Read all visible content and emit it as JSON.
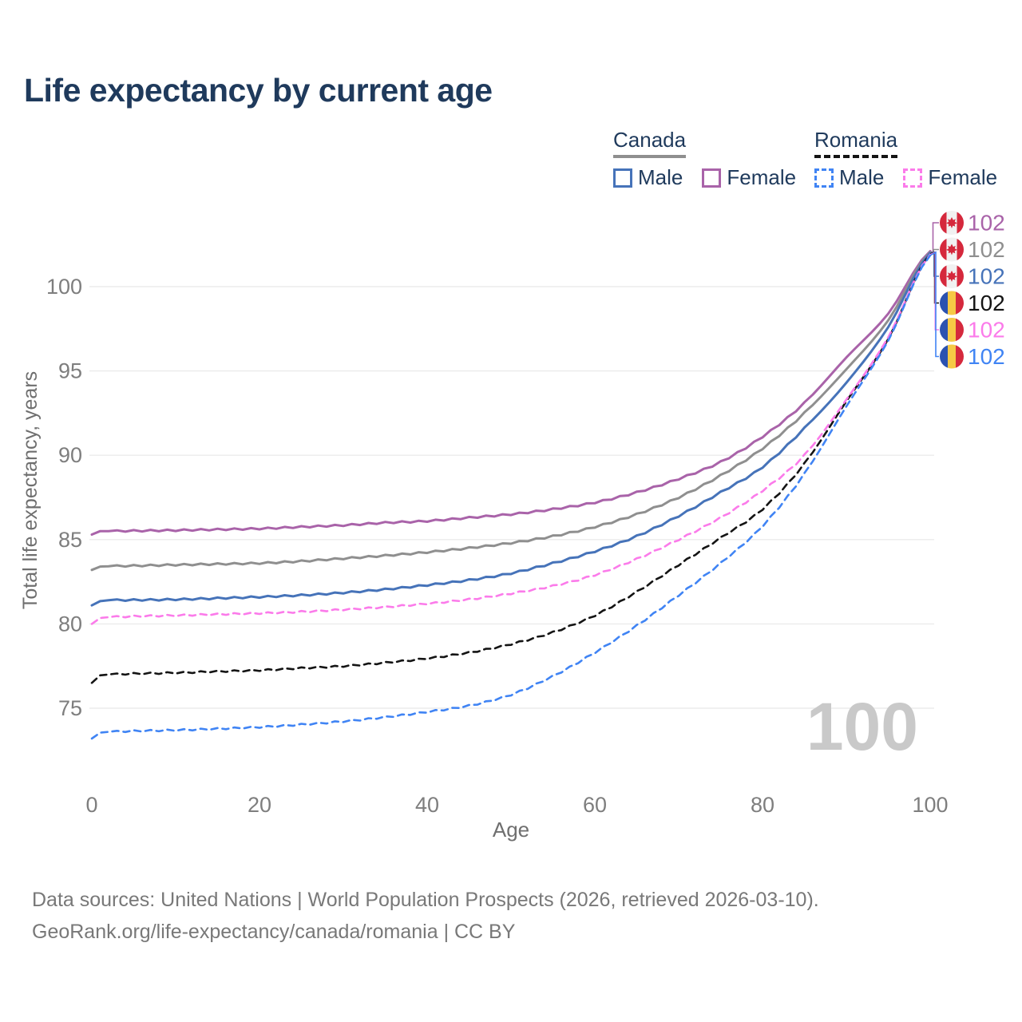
{
  "header": {
    "title": "Life expectancy by current age"
  },
  "legend": {
    "canada": {
      "label": "Canada",
      "male": "Male",
      "female": "Female"
    },
    "romania": {
      "label": "Romania",
      "male": "Male",
      "female": "Female"
    }
  },
  "axes": {
    "x_label": "Age",
    "y_label": "Total life expectancy, years",
    "x_ticks": [
      0,
      20,
      40,
      60,
      80,
      100
    ],
    "y_ticks": [
      75,
      80,
      85,
      90,
      95,
      100
    ]
  },
  "watermark": {
    "text": "100"
  },
  "footer": {
    "line1": "Data sources: United Nations | World Population Prospects (2026, retrieved 2026-03-10).",
    "line2": "GeoRank.org/life-expectancy/canada/romania | CC BY"
  },
  "colors": {
    "canada_male": "#4673b9",
    "canada_female": "#a963a9",
    "canada_total": "#8f8f8f",
    "romania_male": "#4084f4",
    "romania_female": "#fb7bea",
    "romania_total": "#141414",
    "grid": "#ebebeb",
    "tick_text": "#7e7e7e",
    "axis_title_text": "#6f6f6f",
    "title_text": "#1f3a5c",
    "watermark_text": "#c9c9c9",
    "flag_canada_red": "#d5283c",
    "flag_canada_white": "#f1f1f1",
    "flag_romania_blue": "#2b52b0",
    "flag_romania_yellow": "#f6c945",
    "flag_romania_red": "#d5293d"
  },
  "chart_data": {
    "type": "line",
    "title": "Life expectancy by current age",
    "xlabel": "Age",
    "ylabel": "Total life expectancy, years",
    "x_range": [
      0,
      100
    ],
    "y_range": [
      70.5,
      104.2
    ],
    "grid": "horizontal gridlines only",
    "legend_position": "top-right",
    "ages": [
      0,
      1,
      2,
      5,
      10,
      15,
      20,
      25,
      30,
      35,
      40,
      45,
      50,
      55,
      60,
      65,
      70,
      75,
      80,
      85,
      90,
      95,
      100
    ],
    "series": [
      {
        "name": "Canada Female",
        "country": "Canada",
        "sex": "Female",
        "flag": "canada",
        "style": "solid",
        "color": "#a963a9",
        "end_label": "102",
        "values": [
          85.3,
          85.5,
          85.5,
          85.52,
          85.55,
          85.6,
          85.65,
          85.75,
          85.85,
          86.0,
          86.1,
          86.3,
          86.5,
          86.8,
          87.2,
          87.8,
          88.6,
          89.6,
          91.1,
          93.1,
          95.8,
          98.4,
          102.1
        ]
      },
      {
        "name": "Canada Total",
        "country": "Canada",
        "sex": "Both",
        "flag": "canada",
        "style": "solid",
        "color": "#8f8f8f",
        "end_label": "102",
        "values": [
          83.2,
          83.4,
          83.42,
          83.45,
          83.5,
          83.55,
          83.6,
          83.72,
          83.88,
          84.05,
          84.25,
          84.5,
          84.8,
          85.2,
          85.75,
          86.5,
          87.5,
          88.8,
          90.4,
          92.5,
          95.1,
          98.0,
          102.05
        ]
      },
      {
        "name": "Canada Male",
        "country": "Canada",
        "sex": "Male",
        "flag": "canada",
        "style": "solid",
        "color": "#4673b9",
        "end_label": "102",
        "values": [
          81.1,
          81.35,
          81.4,
          81.42,
          81.45,
          81.52,
          81.6,
          81.7,
          81.85,
          82.05,
          82.3,
          82.6,
          83.0,
          83.6,
          84.3,
          85.2,
          86.4,
          87.8,
          89.3,
          91.6,
          94.3,
          97.6,
          102.0
        ]
      },
      {
        "name": "Romania Total",
        "country": "Romania",
        "sex": "Both",
        "flag": "romania",
        "style": "dashed",
        "color": "#141414",
        "end_label": "102",
        "values": [
          76.5,
          76.95,
          77.0,
          77.05,
          77.1,
          77.18,
          77.25,
          77.38,
          77.5,
          77.7,
          77.95,
          78.3,
          78.8,
          79.5,
          80.5,
          81.9,
          83.5,
          85.1,
          86.8,
          89.5,
          93.2,
          96.9,
          101.95
        ]
      },
      {
        "name": "Romania Female",
        "country": "Romania",
        "sex": "Female",
        "flag": "romania",
        "style": "dashed",
        "color": "#fb7bea",
        "end_label": "102",
        "values": [
          80.0,
          80.35,
          80.4,
          80.45,
          80.5,
          80.57,
          80.63,
          80.72,
          80.85,
          81.0,
          81.2,
          81.45,
          81.8,
          82.25,
          82.9,
          83.85,
          85.0,
          86.3,
          87.9,
          90.0,
          93.3,
          97.0,
          101.9
        ]
      },
      {
        "name": "Romania Male",
        "country": "Romania",
        "sex": "Male",
        "flag": "romania",
        "style": "dashed",
        "color": "#4084f4",
        "end_label": "102",
        "values": [
          73.2,
          73.55,
          73.6,
          73.65,
          73.7,
          73.78,
          73.88,
          74.03,
          74.22,
          74.47,
          74.78,
          75.15,
          75.8,
          76.9,
          78.3,
          79.9,
          81.7,
          83.6,
          85.8,
          88.9,
          92.9,
          96.8,
          101.85
        ]
      }
    ]
  }
}
